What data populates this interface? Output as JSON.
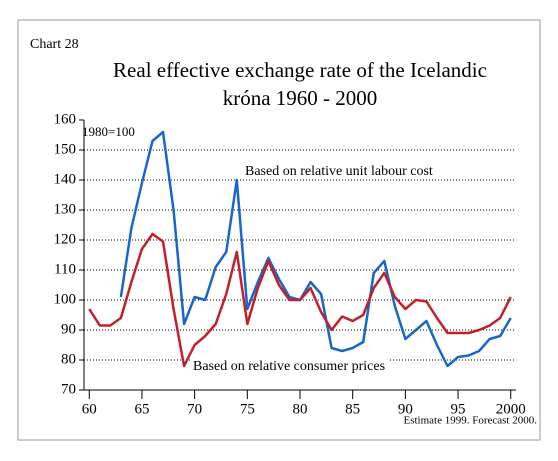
{
  "chart_data": {
    "type": "line",
    "label": "Chart 28",
    "title": "Real effective exchange rate of the Icelandic",
    "title_line2": "króna 1960 - 2000",
    "ylabel": "1980=100",
    "footnote": "Estimate 1999. Forecast 2000.",
    "x": [
      1960,
      1961,
      1962,
      1963,
      1964,
      1965,
      1966,
      1967,
      1968,
      1969,
      1970,
      1971,
      1972,
      1973,
      1974,
      1975,
      1976,
      1977,
      1978,
      1979,
      1980,
      1981,
      1982,
      1983,
      1984,
      1985,
      1986,
      1987,
      1988,
      1989,
      1990,
      1991,
      1992,
      1993,
      1994,
      1995,
      1996,
      1997,
      1998,
      1999,
      2000
    ],
    "series": [
      {
        "name": "Based on relative unit labour cost",
        "color": "#1a66c8",
        "values": [
          null,
          null,
          null,
          101,
          124,
          139,
          153,
          156,
          130,
          92,
          101,
          100,
          111,
          116,
          140,
          97,
          106,
          114,
          107,
          101,
          100,
          106,
          102,
          84,
          83,
          84,
          86,
          109,
          113,
          98,
          87,
          90,
          93,
          85,
          78,
          81,
          81.5,
          83,
          87,
          88,
          94
        ]
      },
      {
        "name": "Based on relative consumer prices",
        "color": "#c0202a",
        "values": [
          97,
          91.5,
          91.5,
          94,
          106,
          117,
          122,
          119.5,
          97,
          78,
          85,
          88,
          92,
          102,
          116,
          92,
          104,
          113,
          105,
          100,
          100,
          104,
          96,
          90,
          94.5,
          93,
          95,
          104,
          109,
          101,
          97,
          100,
          99.5,
          94,
          89,
          89,
          89,
          90,
          91.5,
          94,
          101
        ]
      }
    ],
    "xlim": [
      1959.5,
      2000.5
    ],
    "xticks": [
      {
        "value": 1960,
        "label": "60"
      },
      {
        "value": 1965,
        "label": "65"
      },
      {
        "value": 1970,
        "label": "70"
      },
      {
        "value": 1975,
        "label": "75"
      },
      {
        "value": 1980,
        "label": "80"
      },
      {
        "value": 1985,
        "label": "85"
      },
      {
        "value": 1990,
        "label": "90"
      },
      {
        "value": 1995,
        "label": "95"
      },
      2000
    ],
    "ylim": [
      70,
      160
    ],
    "yticks": [
      70,
      80,
      90,
      100,
      110,
      120,
      130,
      140,
      150,
      160
    ],
    "grid": true
  }
}
